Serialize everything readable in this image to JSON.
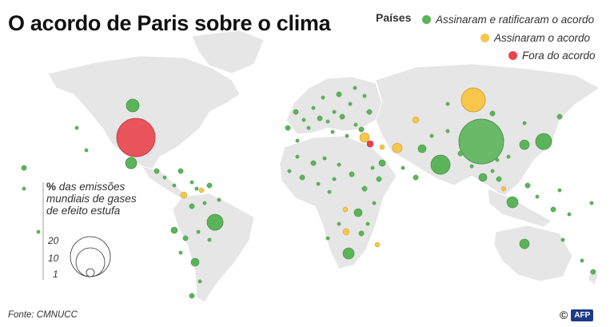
{
  "title": "O acordo de Paris sobre o clima",
  "legend": {
    "heading": "Países",
    "items": [
      {
        "label": "Assinaram e ratificaram o acordo",
        "color": "#5cb45a"
      },
      {
        "label": "Assinaram o acordo",
        "color": "#f7c64a"
      },
      {
        "label": "Fora do acordo",
        "color": "#e8434d"
      }
    ]
  },
  "size_legend": {
    "title_bold": "%",
    "title_rest": " das emissões mundiais de gases de efeito estufa",
    "values": [
      "20",
      "10",
      "1"
    ]
  },
  "source": "Fonte: CMNUCC",
  "credit": {
    "copyright": "©",
    "logo": "AFP"
  },
  "colors": {
    "land": "#e6e6e6",
    "border": "#ffffff",
    "ratified": "#5cb45a",
    "signed": "#f7c64a",
    "outside": "#e8434d"
  }
}
